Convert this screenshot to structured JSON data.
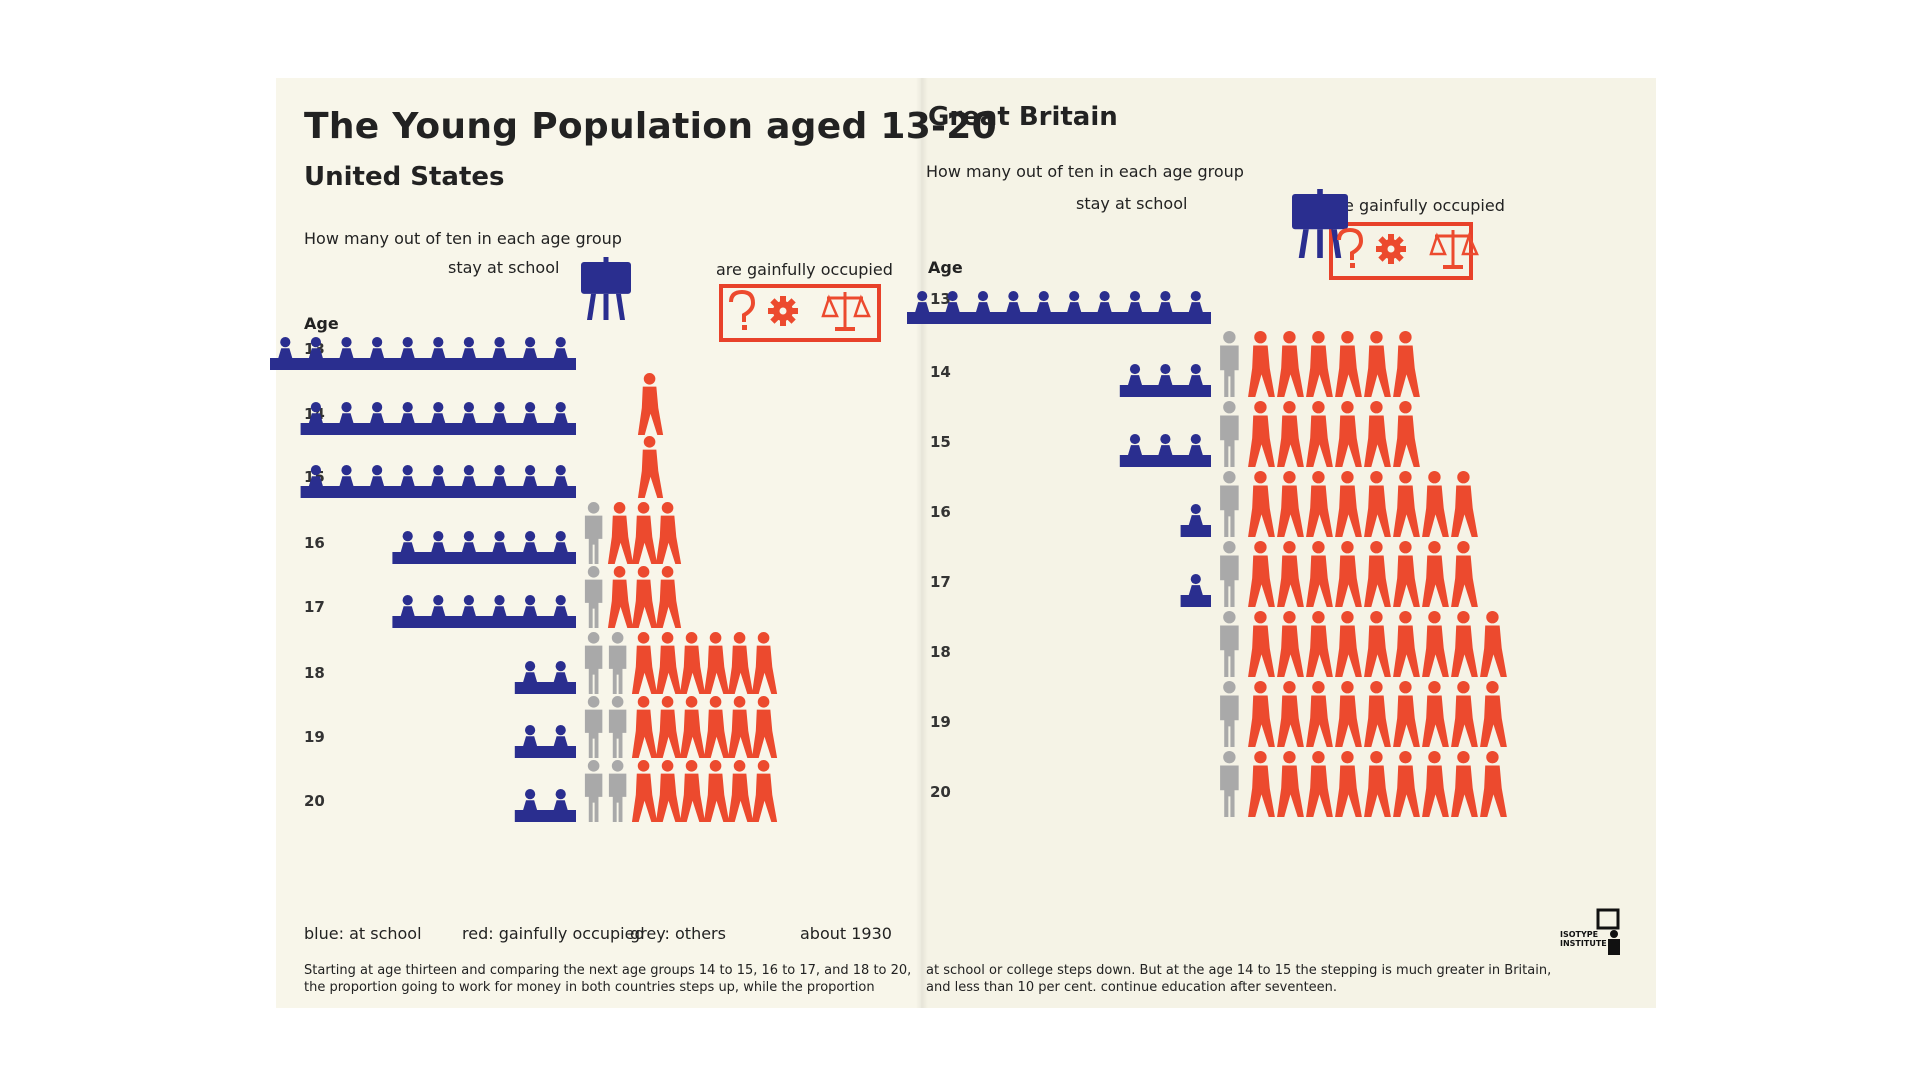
{
  "colors": {
    "school": "#2a2e8f",
    "occupied": "#ec4a2e",
    "others": "#a9a9a9"
  },
  "left_page": {
    "title": "The Young Population aged 13-20",
    "country": "United States",
    "question": "How many out of ten in each age group",
    "school_label": "stay at school",
    "occupied_label": "are gainfully occupied",
    "age_label": "Age",
    "legend": {
      "blue": "blue: at school",
      "red": "red: gainfully occupied",
      "grey": "grey: others",
      "date": "about 1930"
    },
    "caption": [
      "Starting at age thirteen and comparing the next age groups 14 to 15, 16 to 17, and 18 to 20,",
      "the proportion going to work for money in both countries steps up, while the proportion"
    ]
  },
  "right_page": {
    "country": "Great Britain",
    "question": "How many out of ten in each age group",
    "school_label": "stay at school",
    "occupied_label": "are gainfully occupied",
    "age_label": "Age",
    "logo_text": [
      "ISOTYPE",
      "INSTITUTE"
    ],
    "caption": [
      "at school or college steps down.  But at the age 14 to 15 the stepping is much greater in Britain,",
      "and less than 10 per cent. continue education after seventeen."
    ]
  },
  "chart_data": [
    {
      "type": "table",
      "title": "United States",
      "unit": "out of ten in each age group",
      "series": [
        {
          "name": "blue: at school",
          "values": [
            10,
            9,
            9,
            6,
            6,
            2,
            2,
            2
          ]
        },
        {
          "name": "grey: others",
          "values": [
            0,
            0,
            0,
            1,
            1,
            2,
            2,
            2
          ]
        },
        {
          "name": "red: gainfully occupied",
          "values": [
            0,
            1,
            1,
            3,
            3,
            6,
            6,
            6
          ]
        }
      ],
      "categories": [
        "13",
        "14",
        "15",
        "16",
        "17",
        "18",
        "19",
        "20"
      ]
    },
    {
      "type": "table",
      "title": "Great Britain",
      "unit": "out of ten in each age group",
      "series": [
        {
          "name": "blue: at school",
          "values": [
            10,
            3,
            3,
            1,
            1,
            0,
            0,
            0
          ]
        },
        {
          "name": "grey: others",
          "values": [
            0,
            1,
            1,
            1,
            1,
            1,
            1,
            1
          ]
        },
        {
          "name": "red: gainfully occupied",
          "values": [
            0,
            6,
            6,
            8,
            8,
            9,
            9,
            9
          ]
        }
      ],
      "categories": [
        "13",
        "14",
        "15",
        "16",
        "17",
        "18",
        "19",
        "20"
      ]
    }
  ]
}
